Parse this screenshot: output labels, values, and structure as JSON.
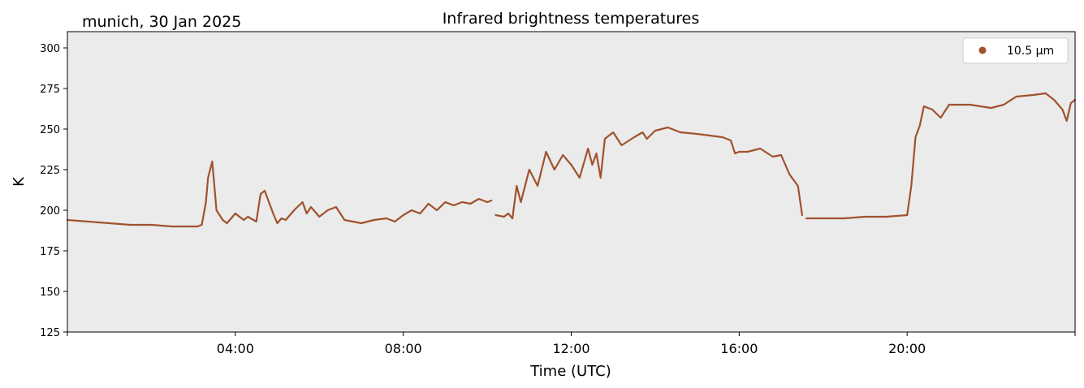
{
  "header": {
    "location_date": "munich, 30 Jan 2025"
  },
  "colors": {
    "series": "#a0522d",
    "plot_background": "#ebebeb"
  },
  "chart_data": {
    "type": "line",
    "title": "Infrared brightness temperatures",
    "xlabel": "Time (UTC)",
    "ylabel": "K",
    "xlim_hours": [
      0,
      24
    ],
    "ylim": [
      125,
      310
    ],
    "x_tick_hours": [
      4,
      8,
      12,
      16,
      20
    ],
    "x_tick_labels": [
      "04:00",
      "08:00",
      "12:00",
      "16:00",
      "20:00"
    ],
    "y_ticks": [
      125,
      150,
      175,
      200,
      225,
      250,
      275,
      300
    ],
    "y_tick_labels": [
      "125",
      "150",
      "175",
      "200",
      "225",
      "250",
      "275",
      "300"
    ],
    "legend": {
      "position": "top-right",
      "entries": [
        "10.5 µm"
      ]
    },
    "grid": false,
    "series": [
      {
        "name": "10.5 µm",
        "segments": [
          {
            "x_hours": [
              0.0,
              0.5,
              1.0,
              1.5,
              2.0,
              2.5,
              3.0,
              3.1,
              3.2,
              3.3,
              3.35,
              3.45,
              3.5,
              3.55,
              3.6,
              3.7,
              3.8,
              4.0,
              4.2,
              4.3,
              4.5,
              4.6,
              4.7,
              4.8,
              4.9,
              5.0,
              5.1,
              5.2,
              5.4,
              5.6,
              5.7,
              5.8,
              6.0,
              6.2,
              6.4,
              6.6,
              6.8,
              7.0,
              7.3,
              7.6,
              7.8,
              8.0,
              8.2,
              8.4,
              8.6,
              8.8,
              9.0,
              9.2,
              9.4,
              9.6,
              9.8,
              10.0,
              10.1
            ],
            "y": [
              194,
              193,
              192,
              191,
              191,
              190,
              190,
              190,
              191,
              205,
              220,
              230,
              215,
              200,
              198,
              194,
              192,
              198,
              194,
              196,
              193,
              210,
              212,
              205,
              198,
              192,
              195,
              194,
              200,
              205,
              198,
              202,
              196,
              200,
              202,
              194,
              193,
              192,
              194,
              195,
              193,
              197,
              200,
              198,
              204,
              200,
              205,
              203,
              205,
              204,
              207,
              205,
              206
            ]
          },
          {
            "x_hours": [
              10.2,
              10.4,
              10.5,
              10.6,
              10.7,
              10.8,
              11.0,
              11.2,
              11.4,
              11.6,
              11.8,
              12.0,
              12.2,
              12.4,
              12.5,
              12.6,
              12.7,
              12.8,
              13.0,
              13.2,
              13.5,
              13.7,
              13.8,
              14.0,
              14.3,
              14.6,
              15.0,
              15.3,
              15.6,
              15.8,
              15.9,
              16.0,
              16.2,
              16.5,
              16.8,
              17.0,
              17.2,
              17.4,
              17.5
            ],
            "y": [
              197,
              196,
              198,
              195,
              215,
              205,
              225,
              215,
              236,
              225,
              234,
              228,
              220,
              238,
              228,
              235,
              220,
              244,
              248,
              240,
              245,
              248,
              244,
              249,
              251,
              248,
              247,
              246,
              245,
              243,
              235,
              236,
              236,
              238,
              233,
              234,
              222,
              215,
              197
            ]
          },
          {
            "x_hours": [
              17.6,
              18.0,
              18.5,
              19.0,
              19.5,
              20.0,
              20.1,
              20.2,
              20.3,
              20.4,
              20.6,
              20.8,
              21.0,
              21.5,
              22.0,
              22.3,
              22.6,
              23.0,
              23.3,
              23.5,
              23.6,
              23.7,
              23.8,
              23.9,
              24.0
            ],
            "y": [
              195,
              195,
              195,
              196,
              196,
              197,
              215,
              245,
              252,
              264,
              262,
              257,
              265,
              265,
              263,
              265,
              270,
              271,
              272,
              268,
              265,
              262,
              255,
              266,
              268
            ]
          }
        ]
      }
    ]
  }
}
